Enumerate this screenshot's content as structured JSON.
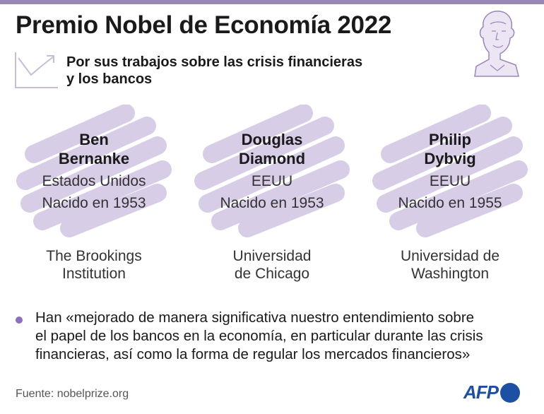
{
  "header": {
    "title": "Premio Nobel de Economía 2022",
    "subtitle_line1": "Por sus trabajos sobre las crisis financieras",
    "subtitle_line2": "y los bancos"
  },
  "laureates": [
    {
      "name_line1": "Ben",
      "name_line2": "Bernanke",
      "country": "Estados Unidos",
      "born": "Nacido en 1953",
      "institution_line1": "The Brookings",
      "institution_line2": "Institution"
    },
    {
      "name_line1": "Douglas",
      "name_line2": "Diamond",
      "country": "EEUU",
      "born": "Nacido en 1953",
      "institution_line1": "Universidad",
      "institution_line2": "de Chicago"
    },
    {
      "name_line1": "Philip",
      "name_line2": "Dybvig",
      "country": "EEUU",
      "born": "Nacido en 1955",
      "institution_line1": "Universidad de",
      "institution_line2": "Washington"
    }
  ],
  "quote": {
    "line1": "Han «mejorado de manera significativa nuestro entendimiento sobre",
    "line2": "el papel de los bancos en la economía, en particular durante las crisis",
    "line3": "financieras, así como la forma de regular los mercados financieros»"
  },
  "footer": {
    "source": "Fuente: nobelprize.org",
    "logo_text": "AFP"
  },
  "colors": {
    "accent": "#9b86b8",
    "scribble": "#d7cde6",
    "bullet": "#8e6fbf",
    "afp_blue": "#1d4fa3"
  },
  "icons": {
    "chart": "line-chart-icon",
    "medal": "nobel-medal-icon"
  }
}
